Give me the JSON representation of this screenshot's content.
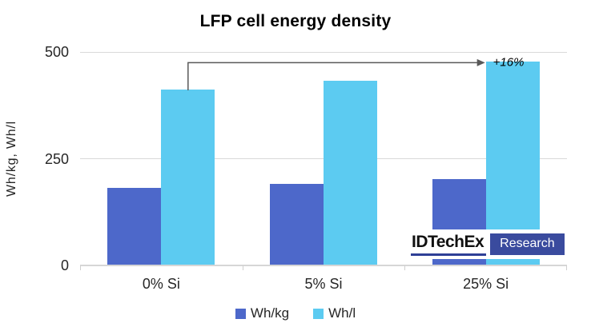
{
  "chart_data": {
    "type": "bar",
    "title": "LFP cell energy density",
    "xlabel": "",
    "ylabel": "Wh/kg, Wh/l",
    "categories": [
      "0% Si",
      "5% Si",
      "25% Si"
    ],
    "series": [
      {
        "name": "Wh/kg",
        "values": [
          180,
          190,
          200
        ],
        "color": "#4D68CA"
      },
      {
        "name": "Wh/l",
        "values": [
          410,
          430,
          475
        ],
        "color": "#5CCBF1"
      }
    ],
    "ylim": [
      0,
      500
    ],
    "yticks": [
      0,
      250,
      500
    ],
    "grid": true,
    "legend_position": "bottom",
    "annotation": {
      "text": "+16%",
      "series": "Wh/l",
      "from_category": "0% Si",
      "to_category": "25% Si"
    }
  },
  "branding": {
    "name": "IDTechEx",
    "suffix": "Research",
    "underline_color": "#2E3F96",
    "badge_color": "#3A4B9E"
  },
  "style": {
    "grid_color": "#D9D9D9",
    "arrow_color": "#595959"
  }
}
